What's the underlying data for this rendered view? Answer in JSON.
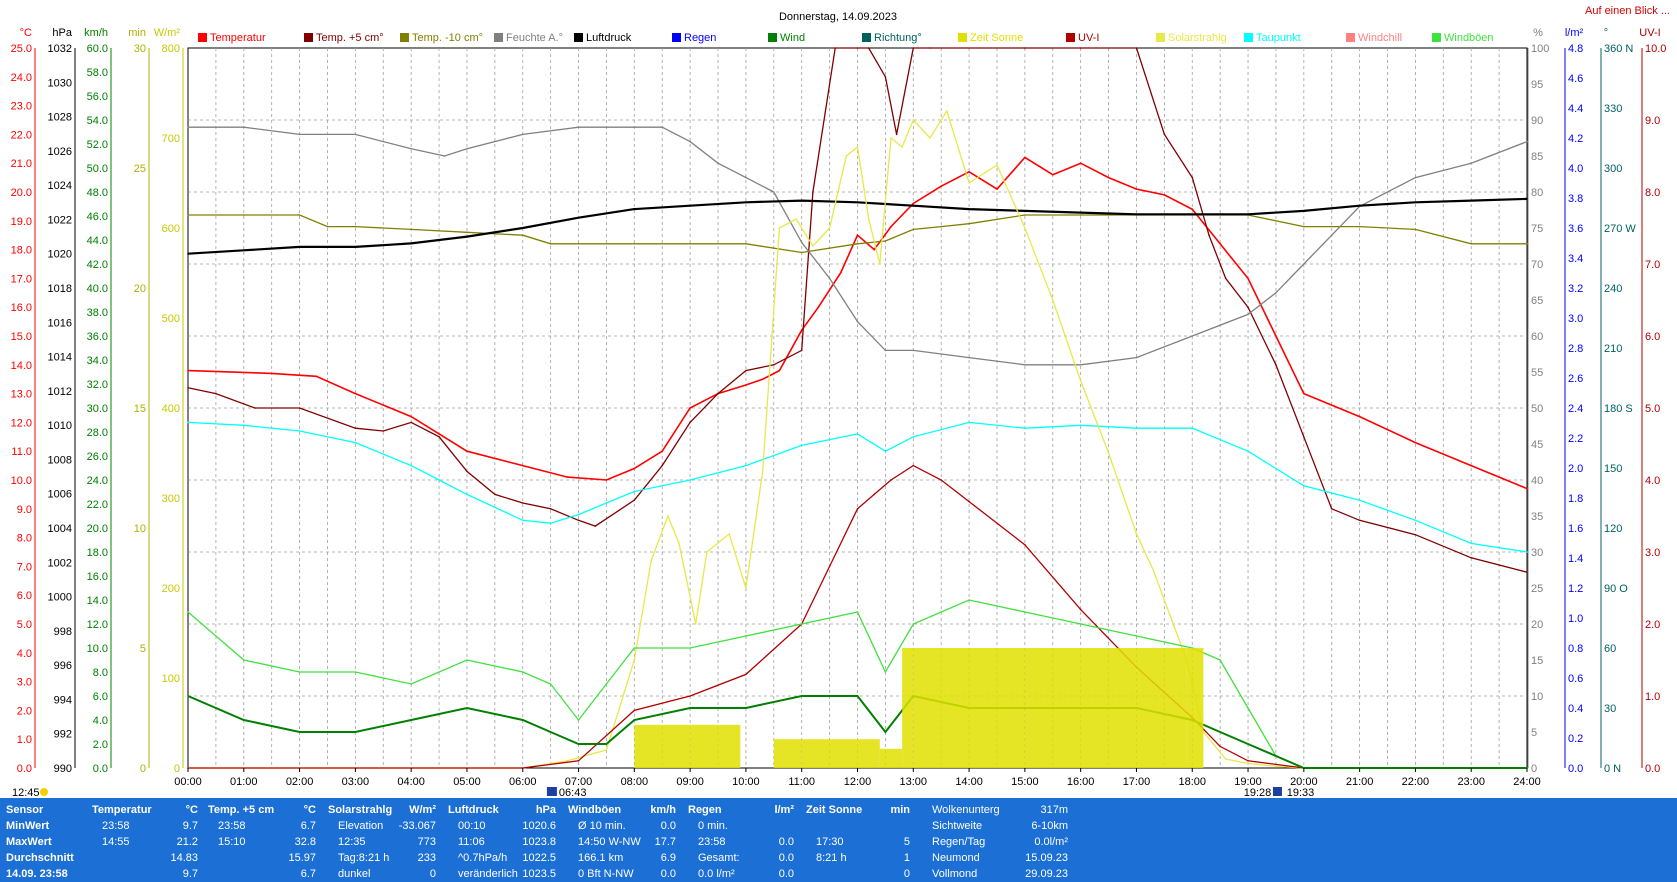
{
  "page": {
    "title": "Donnerstag, 14.09.2023",
    "top_right_link": "Auf einen Blick ..."
  },
  "colors": {
    "temperature": "#ff0000",
    "temp5": "#800000",
    "tempm10": "#808000",
    "humidity": "#808080",
    "pressure": "#000000",
    "rain": "#0000ff",
    "wind": "#008000",
    "direction": "#006060",
    "sun_time": "#e0e000",
    "uv": "#b00000",
    "solar": "#e8e84a",
    "dewpoint": "#00ffff",
    "windchill": "#ff8080",
    "gusts": "#40e040",
    "grid": "#a0a0a0",
    "stats_bg": "#1c6fd4"
  },
  "legend": [
    {
      "label": "Temperatur",
      "color": "#ff0000"
    },
    {
      "label": "Temp. +5 cm°",
      "color": "#800000"
    },
    {
      "label": "Temp. -10 cm°",
      "color": "#808000"
    },
    {
      "label": "Feuchte A.°",
      "color": "#808080"
    },
    {
      "label": "Luftdruck",
      "color": "#000000"
    },
    {
      "label": "Regen",
      "color": "#0000ff"
    },
    {
      "label": "Wind",
      "color": "#008000"
    },
    {
      "label": "Richtung°",
      "color": "#006060"
    },
    {
      "label": "Zeit Sonne",
      "color": "#e0e000"
    },
    {
      "label": "UV-I",
      "color": "#b00000"
    },
    {
      "label": "Solarstrahlg",
      "color": "#e8e84a"
    },
    {
      "label": "Taupunkt",
      "color": "#00ffff"
    },
    {
      "label": "Windchill",
      "color": "#ff8080"
    },
    {
      "label": "Windböen",
      "color": "#40e040"
    }
  ],
  "axes": {
    "left_units": [
      "°C",
      "hPa",
      "km/h",
      "min",
      "W/m²"
    ],
    "right_units": [
      "%",
      "l/m²",
      "°",
      "UV-I"
    ],
    "temp_ticks": [
      "25.0",
      "24.0",
      "23.0",
      "22.0",
      "21.0",
      "20.0",
      "19.0",
      "18.0",
      "17.0",
      "16.0",
      "15.0",
      "14.0",
      "13.0",
      "12.0",
      "11.0",
      "10.0",
      "9.0",
      "8.0",
      "7.0",
      "6.0",
      "5.0",
      "4.0",
      "3.0",
      "2.0",
      "1.0",
      "0.0"
    ],
    "hpa_ticks": [
      "1032",
      "1030",
      "1028",
      "1026",
      "1024",
      "1022",
      "1020",
      "1018",
      "1016",
      "1014",
      "1012",
      "1010",
      "1008",
      "1006",
      "1004",
      "1002",
      "1000",
      "998",
      "996",
      "994",
      "992",
      "990"
    ],
    "kmh_ticks": [
      "60.0",
      "58.0",
      "56.0",
      "54.0",
      "52.0",
      "50.0",
      "48.0",
      "46.0",
      "44.0",
      "42.0",
      "40.0",
      "38.0",
      "36.0",
      "34.0",
      "32.0",
      "30.0",
      "28.0",
      "26.0",
      "24.0",
      "22.0",
      "20.0",
      "18.0",
      "16.0",
      "14.0",
      "12.0",
      "10.0",
      "8.0",
      "6.0",
      "4.0",
      "2.0",
      "0.0"
    ],
    "min_ticks": [
      "30",
      "25",
      "20",
      "15",
      "10",
      "5",
      "0"
    ],
    "wm2_ticks": [
      "800",
      "700",
      "600",
      "500",
      "400",
      "300",
      "200",
      "100",
      "0"
    ],
    "pct_ticks": [
      "100",
      "95",
      "90",
      "85",
      "80",
      "75",
      "70",
      "65",
      "60",
      "55",
      "50",
      "45",
      "40",
      "35",
      "30",
      "25",
      "20",
      "15",
      "10",
      "5",
      "0"
    ],
    "lm2_ticks": [
      "4.8",
      "4.6",
      "4.4",
      "4.2",
      "4.0",
      "3.8",
      "3.6",
      "3.4",
      "3.2",
      "3.0",
      "2.8",
      "2.6",
      "2.4",
      "2.2",
      "2.0",
      "1.8",
      "1.6",
      "1.4",
      "1.2",
      "1.0",
      "0.8",
      "0.6",
      "0.4",
      "0.2",
      "0.0"
    ],
    "dir_ticks": [
      "360 N",
      "330",
      "300",
      "270 W",
      "240",
      "210",
      "180 S",
      "150",
      "120",
      "90  O",
      "60",
      "30",
      "0  N"
    ],
    "uv_ticks": [
      "10.0",
      "9.0",
      "8.0",
      "7.0",
      "6.0",
      "5.0",
      "4.0",
      "3.0",
      "2.0",
      "1.0",
      "0.0"
    ],
    "time_ticks": [
      "00:00",
      "01:00",
      "02:00",
      "03:00",
      "04:00",
      "05:00",
      "06:00",
      "07:00",
      "08:00",
      "09:00",
      "10:00",
      "11:00",
      "12:00",
      "13:00",
      "14:00",
      "15:00",
      "16:00",
      "17:00",
      "18:00",
      "19:00",
      "20:00",
      "21:00",
      "22:00",
      "23:00",
      "24:00"
    ],
    "markers": {
      "current_time": "12:45",
      "sunrise": "06:43",
      "sunset": "19:28",
      "dusk": "19:33"
    }
  },
  "chart_data": {
    "type": "line",
    "title": "Donnerstag, 14.09.2023",
    "x_unit": "hours",
    "xlim": [
      0,
      24
    ],
    "series": [
      {
        "name": "Temperatur",
        "unit": "°C",
        "ylim": [
          0,
          25
        ],
        "x": [
          0,
          1.5,
          2.3,
          3,
          4,
          5,
          6,
          6.8,
          7.5,
          8,
          8.5,
          9,
          9.5,
          10,
          10.3,
          10.6,
          11,
          11.3,
          11.7,
          12,
          12.3,
          12.6,
          13,
          13.5,
          14,
          14.5,
          15,
          15.5,
          16,
          16.5,
          17,
          17.5,
          18,
          18.5,
          19,
          19.5,
          20,
          21,
          22,
          23,
          24
        ],
        "y": [
          13.8,
          13.7,
          13.6,
          13.0,
          12.2,
          11.0,
          10.5,
          10.1,
          10.0,
          10.4,
          11.0,
          12.5,
          13.0,
          13.3,
          13.5,
          13.8,
          15.2,
          16.0,
          17.2,
          18.5,
          18.0,
          18.8,
          19.6,
          20.2,
          20.7,
          20.1,
          21.2,
          20.6,
          21.0,
          20.5,
          20.1,
          19.9,
          19.4,
          18.2,
          17.0,
          15.0,
          13.0,
          12.2,
          11.3,
          10.5,
          9.7
        ]
      },
      {
        "name": "Temp. +5 cm°",
        "unit": "°C",
        "ylim": [
          0,
          25
        ],
        "x": [
          0,
          0.5,
          1.2,
          2,
          3,
          3.5,
          4,
          4.5,
          5,
          5.5,
          6,
          6.5,
          7,
          7.3,
          8,
          8.5,
          9,
          9.5,
          10,
          10.5,
          11,
          11.2,
          11.6,
          12,
          12.2,
          12.5,
          12.7,
          13,
          13.3,
          15,
          16,
          17,
          17.5,
          18,
          18.3,
          18.6,
          19,
          19.5,
          20,
          20.5,
          21,
          22,
          23,
          24
        ],
        "y": [
          13.2,
          13.0,
          12.5,
          12.5,
          11.8,
          11.7,
          12.0,
          11.5,
          10.3,
          9.5,
          9.2,
          9.0,
          8.6,
          8.4,
          9.3,
          10.5,
          12.0,
          13.0,
          13.8,
          14.0,
          14.5,
          20.0,
          25.0,
          25.0,
          25.0,
          24.0,
          22.0,
          25.0,
          25.0,
          25.0,
          25.0,
          25.0,
          22.0,
          20.5,
          18.5,
          17.0,
          16.0,
          14.0,
          11.5,
          9.0,
          8.6,
          8.1,
          7.3,
          6.8
        ]
      },
      {
        "name": "Temp. -10 cm°",
        "unit": "°C",
        "ylim": [
          0,
          25
        ],
        "x": [
          0,
          1,
          2,
          2.5,
          3,
          4,
          5,
          6,
          6.5,
          7,
          8,
          9,
          10,
          11,
          12,
          12.5,
          13,
          13.5,
          14,
          15,
          16,
          17,
          18,
          19,
          20,
          21,
          22,
          23,
          24
        ],
        "y": [
          19.2,
          19.2,
          19.2,
          18.8,
          18.8,
          18.7,
          18.6,
          18.5,
          18.2,
          18.2,
          18.2,
          18.2,
          18.2,
          17.9,
          18.2,
          18.3,
          18.7,
          18.8,
          18.9,
          19.2,
          19.2,
          19.2,
          19.2,
          19.2,
          18.8,
          18.8,
          18.7,
          18.2,
          18.2
        ]
      },
      {
        "name": "Feuchte A.°",
        "unit": "%",
        "ylim": [
          0,
          100
        ],
        "x": [
          0,
          1,
          2,
          3,
          4,
          4.6,
          5,
          6,
          7,
          8,
          8.5,
          9,
          9.5,
          10,
          10.5,
          11,
          11.5,
          12,
          12.5,
          13,
          14,
          15,
          16,
          17,
          18,
          19,
          19.5,
          20,
          21,
          22,
          23,
          24
        ],
        "y": [
          89,
          89,
          88,
          88,
          86,
          85,
          86,
          88,
          89,
          89,
          89,
          87,
          84,
          82,
          80,
          73,
          68,
          62,
          58,
          58,
          57,
          56,
          56,
          57,
          60,
          63,
          66,
          70,
          78,
          82,
          84,
          87
        ]
      },
      {
        "name": "Luftdruck",
        "unit": "hPa",
        "ylim": [
          990,
          1032
        ],
        "x": [
          0,
          1,
          2,
          3,
          4,
          5,
          6,
          7,
          8,
          9,
          10,
          11,
          12,
          13,
          14,
          15,
          16,
          17,
          18,
          19,
          20,
          21,
          22,
          23,
          24
        ],
        "y": [
          1020.0,
          1020.2,
          1020.4,
          1020.4,
          1020.6,
          1021.0,
          1021.5,
          1022.1,
          1022.6,
          1022.8,
          1023.0,
          1023.1,
          1023.0,
          1022.8,
          1022.6,
          1022.5,
          1022.4,
          1022.3,
          1022.3,
          1022.3,
          1022.5,
          1022.8,
          1023.0,
          1023.1,
          1023.2
        ]
      },
      {
        "name": "Taupunkt",
        "unit": "°C",
        "ylim": [
          0,
          25
        ],
        "x": [
          0,
          1,
          2,
          3,
          4,
          4.5,
          5,
          6,
          6.5,
          7,
          7.5,
          8,
          9,
          10,
          11,
          12,
          12.5,
          13,
          14,
          15,
          16,
          17,
          18,
          19,
          20,
          21,
          22,
          23,
          24
        ],
        "y": [
          12.0,
          11.9,
          11.7,
          11.3,
          10.5,
          10.0,
          9.5,
          8.6,
          8.5,
          8.8,
          9.2,
          9.6,
          10.0,
          10.5,
          11.2,
          11.6,
          11.0,
          11.5,
          12.0,
          11.8,
          11.9,
          11.8,
          11.8,
          11.0,
          9.8,
          9.3,
          8.6,
          7.8,
          7.5
        ]
      },
      {
        "name": "Solarstrahlg",
        "unit": "W/m²",
        "ylim": [
          0,
          800
        ],
        "x": [
          0,
          6,
          6.8,
          7.5,
          8,
          8.3,
          8.6,
          8.8,
          9.1,
          9.3,
          9.7,
          10,
          10.3,
          10.6,
          10.9,
          11.2,
          11.5,
          11.8,
          12.0,
          12.2,
          12.4,
          12.6,
          12.8,
          13.0,
          13.3,
          13.6,
          14,
          14.5,
          15,
          15.5,
          16,
          16.5,
          17,
          17.3,
          17.6,
          17.9,
          18.2,
          18.6,
          19,
          19.5,
          20,
          24
        ],
        "y": [
          0,
          0,
          8,
          20,
          120,
          230,
          280,
          250,
          160,
          240,
          260,
          200,
          330,
          600,
          610,
          580,
          600,
          680,
          690,
          610,
          560,
          700,
          690,
          720,
          700,
          730,
          650,
          670,
          600,
          520,
          430,
          350,
          260,
          220,
          170,
          120,
          40,
          10,
          5,
          2,
          0,
          0
        ]
      },
      {
        "name": "UV-I",
        "unit": "UV-I",
        "ylim": [
          0,
          10
        ],
        "x": [
          0,
          6,
          7,
          8,
          9,
          10,
          11,
          11.5,
          12,
          12.3,
          12.6,
          13,
          13.5,
          14,
          15,
          16,
          17,
          18,
          18.5,
          19,
          20,
          24
        ],
        "y": [
          0,
          0,
          0.1,
          0.8,
          1.0,
          1.3,
          2.0,
          2.8,
          3.6,
          3.8,
          4.0,
          4.2,
          4.0,
          3.7,
          3.1,
          2.2,
          1.4,
          0.7,
          0.3,
          0.1,
          0,
          0
        ]
      },
      {
        "name": "Windböen",
        "unit": "km/h",
        "ylim": [
          0,
          60
        ],
        "x": [
          0,
          1,
          2,
          3,
          4,
          5,
          6,
          6.5,
          7,
          7.5,
          8,
          9,
          10,
          11,
          12,
          12.5,
          13,
          14,
          15,
          16,
          17,
          18,
          18.5,
          19,
          19.5,
          20,
          24
        ],
        "y": [
          13,
          9,
          8,
          8,
          7,
          9,
          8,
          7,
          4,
          7,
          10,
          10,
          11,
          12,
          13,
          8,
          12,
          14,
          13,
          12,
          11,
          10,
          9,
          5,
          1,
          0,
          0
        ]
      },
      {
        "name": "Wind",
        "unit": "km/h",
        "ylim": [
          0,
          60
        ],
        "x": [
          0,
          1,
          2,
          3,
          4,
          5,
          6,
          6.5,
          7,
          7.5,
          8,
          9,
          10,
          11,
          12,
          12.5,
          13,
          14,
          15,
          16,
          17,
          18,
          18.5,
          19,
          19.5,
          20,
          24
        ],
        "y": [
          6,
          4,
          3,
          3,
          4,
          5,
          4,
          3,
          2,
          2,
          4,
          5,
          5,
          6,
          6,
          3,
          6,
          5,
          5,
          5,
          5,
          4,
          3,
          2,
          1,
          0,
          0
        ]
      },
      {
        "name": "Zeit Sonne",
        "unit": "min",
        "ylim": [
          0,
          30
        ],
        "x": [
          0,
          7.5,
          8,
          9,
          9.9,
          10.5,
          11,
          12.4,
          12.8,
          13,
          15,
          17,
          17.9,
          18.2,
          24
        ],
        "y": [
          0,
          0,
          1.8,
          1.8,
          0,
          1.2,
          1.2,
          0.8,
          5,
          5,
          5,
          5,
          5,
          0,
          0
        ]
      }
    ]
  },
  "stats": {
    "row_labels": [
      "Sensor",
      "MinWert",
      "MaxWert",
      "Durchschnitt",
      "14.09. 23:58"
    ],
    "columns": [
      {
        "header": "Temperatur",
        "unit": "°C",
        "rows": [
          [
            "23:58",
            "9.7"
          ],
          [
            "14:55",
            "21.2"
          ],
          [
            "",
            "14.83"
          ],
          [
            "",
            "9.7"
          ]
        ]
      },
      {
        "header": "Temp. +5 cm",
        "unit": "°C",
        "rows": [
          [
            "23:58",
            "6.7"
          ],
          [
            "15:10",
            "32.8"
          ],
          [
            "",
            "15.97"
          ],
          [
            "",
            "6.7"
          ]
        ]
      },
      {
        "header": "Solarstrahlg",
        "unit": "W/m²",
        "rows": [
          [
            "Elevation",
            "-33.067"
          ],
          [
            "12:35",
            "773"
          ],
          [
            "Tag:8:21 h",
            "233"
          ],
          [
            "dunkel",
            "0"
          ]
        ]
      },
      {
        "header": "Luftdruck",
        "unit": "hPa",
        "rows": [
          [
            "00:10",
            "1020.6"
          ],
          [
            "11:06",
            "1023.8"
          ],
          [
            "^0.7hPa/h",
            "1022.5"
          ],
          [
            "veränderlich",
            "1023.5"
          ]
        ]
      },
      {
        "header": "Windböen",
        "unit": "km/h",
        "rows": [
          [
            "Ø 10 min.",
            "0.0"
          ],
          [
            "14:50  W-NW",
            "17.7"
          ],
          [
            "166.1 km",
            "6.9"
          ],
          [
            "0 Bft N-NW",
            "0.0"
          ]
        ]
      },
      {
        "header": "Regen",
        "unit": "l/m²",
        "rows": [
          [
            "0 min.",
            ""
          ],
          [
            "23:58",
            "0.0"
          ],
          [
            "Gesamt:",
            "0.0"
          ],
          [
            "0.0 l/m²",
            "0.0"
          ]
        ]
      },
      {
        "header": "Zeit Sonne",
        "unit": "min",
        "rows": [
          [
            "",
            ""
          ],
          [
            "17:30",
            "5"
          ],
          [
            "8:21 h",
            "1"
          ],
          [
            "",
            "0"
          ]
        ]
      },
      {
        "header": "",
        "unit": "",
        "rows": [
          [
            "Wolkenunterg",
            "317m"
          ],
          [
            "Sichtweite",
            "6-10km"
          ],
          [
            "Regen/Tag",
            "0.0l/m²"
          ],
          [
            "Neumond",
            "15.09.23"
          ],
          [
            "Vollmond",
            "29.09.23"
          ]
        ]
      }
    ]
  }
}
